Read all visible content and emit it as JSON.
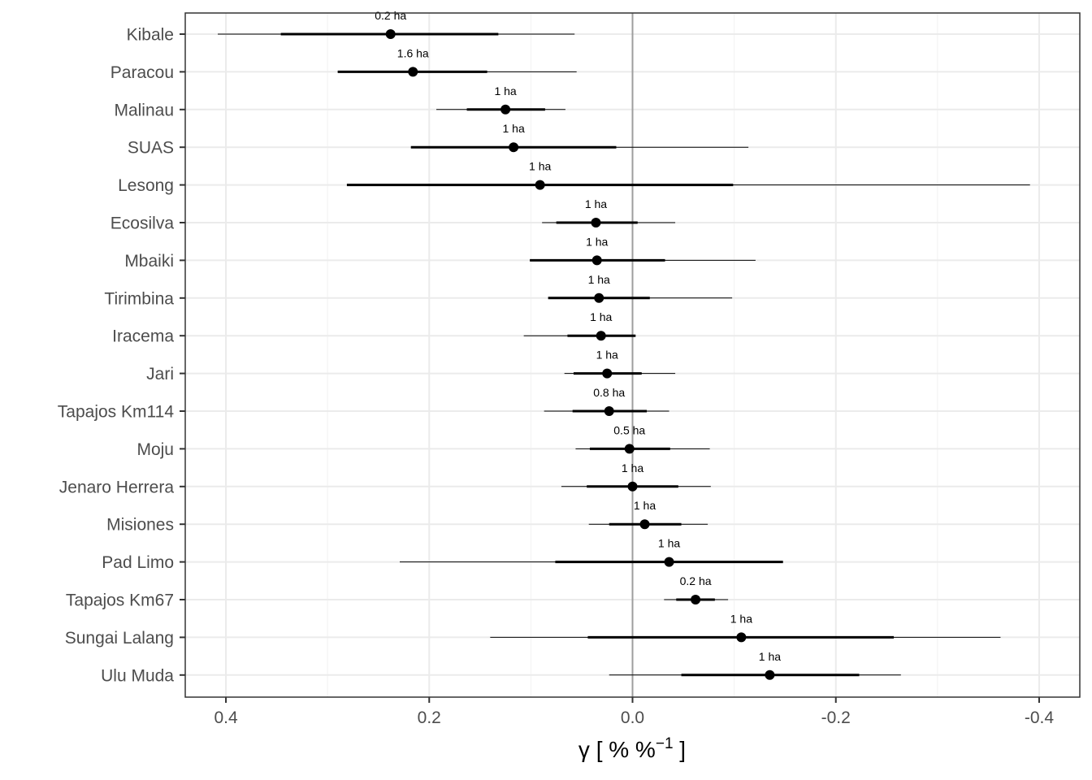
{
  "chart_data": {
    "type": "forest",
    "xlabel_main": "γ [ % %",
    "xlabel_sup": "−1",
    "xlabel_end": " ]",
    "x_reversed": true,
    "xlim": [
      0.44,
      -0.44
    ],
    "x_ticks": [
      0.4,
      0.2,
      0.0,
      -0.2,
      -0.4
    ],
    "x_tick_labels": [
      "0.4",
      "0.2",
      "0.0",
      "-0.2",
      "-0.4"
    ],
    "reference_line": 0.0,
    "grid": true,
    "colors": {
      "point": "#000000",
      "interval": "#000000",
      "grid_major": "#ebebeb",
      "grid_minor": "#f2f2f2",
      "panel_border": "#333333",
      "reference": "#9e9e9e"
    },
    "sites": [
      {
        "name": "Kibale",
        "plot_size": "0.2 ha",
        "median": 0.238,
        "inner": [
          0.346,
          0.132
        ],
        "outer": [
          0.408,
          0.057
        ]
      },
      {
        "name": "Paracou",
        "plot_size": "1.6 ha",
        "median": 0.216,
        "inner": [
          0.29,
          0.143
        ],
        "outer": [
          0.29,
          0.055
        ]
      },
      {
        "name": "Malinau",
        "plot_size": "1 ha",
        "median": 0.125,
        "inner": [
          0.163,
          0.086
        ],
        "outer": [
          0.193,
          0.066
        ]
      },
      {
        "name": "SUAS",
        "plot_size": "1 ha",
        "median": 0.117,
        "inner": [
          0.218,
          0.016
        ],
        "outer": [
          0.218,
          -0.114
        ]
      },
      {
        "name": "Lesong",
        "plot_size": "1 ha",
        "median": 0.091,
        "inner": [
          0.281,
          -0.099
        ],
        "outer": [
          0.281,
          -0.391
        ]
      },
      {
        "name": "Ecosilva",
        "plot_size": "1 ha",
        "median": 0.036,
        "inner": [
          0.075,
          -0.005
        ],
        "outer": [
          0.089,
          -0.042
        ]
      },
      {
        "name": "Mbaiki",
        "plot_size": "1 ha",
        "median": 0.035,
        "inner": [
          0.101,
          -0.032
        ],
        "outer": [
          0.101,
          -0.121
        ]
      },
      {
        "name": "Tirimbina",
        "plot_size": "1 ha",
        "median": 0.033,
        "inner": [
          0.083,
          -0.017
        ],
        "outer": [
          0.083,
          -0.098
        ]
      },
      {
        "name": "Iracema",
        "plot_size": "1 ha",
        "median": 0.031,
        "inner": [
          0.064,
          -0.003
        ],
        "outer": [
          0.107,
          -0.003
        ]
      },
      {
        "name": "Jari",
        "plot_size": "1 ha",
        "median": 0.025,
        "inner": [
          0.058,
          -0.009
        ],
        "outer": [
          0.067,
          -0.042
        ]
      },
      {
        "name": "Tapajos Km114",
        "plot_size": "0.8 ha",
        "median": 0.023,
        "inner": [
          0.059,
          -0.014
        ],
        "outer": [
          0.087,
          -0.036
        ]
      },
      {
        "name": "Moju",
        "plot_size": "0.5 ha",
        "median": 0.003,
        "inner": [
          0.042,
          -0.037
        ],
        "outer": [
          0.056,
          -0.076
        ]
      },
      {
        "name": "Jenaro Herrera",
        "plot_size": "1 ha",
        "median": 0.0,
        "inner": [
          0.045,
          -0.045
        ],
        "outer": [
          0.07,
          -0.077
        ]
      },
      {
        "name": "Misiones",
        "plot_size": "1 ha",
        "median": -0.012,
        "inner": [
          0.023,
          -0.048
        ],
        "outer": [
          0.043,
          -0.074
        ]
      },
      {
        "name": "Pad Limo",
        "plot_size": "1 ha",
        "median": -0.036,
        "inner": [
          0.076,
          -0.148
        ],
        "outer": [
          0.229,
          -0.148
        ]
      },
      {
        "name": "Tapajos Km67",
        "plot_size": "0.2 ha",
        "median": -0.062,
        "inner": [
          -0.043,
          -0.081
        ],
        "outer": [
          -0.031,
          -0.094
        ]
      },
      {
        "name": "Sungai Lalang",
        "plot_size": "1 ha",
        "median": -0.107,
        "inner": [
          0.044,
          -0.257
        ],
        "outer": [
          0.14,
          -0.362
        ]
      },
      {
        "name": "Ulu Muda",
        "plot_size": "1 ha",
        "median": -0.135,
        "inner": [
          -0.048,
          -0.223
        ],
        "outer": [
          0.023,
          -0.264
        ]
      }
    ]
  }
}
